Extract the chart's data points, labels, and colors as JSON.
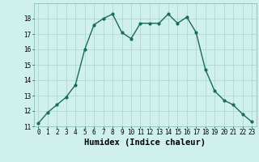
{
  "x": [
    0,
    1,
    2,
    3,
    4,
    5,
    6,
    7,
    8,
    9,
    10,
    11,
    12,
    13,
    14,
    15,
    16,
    17,
    18,
    19,
    20,
    21,
    22,
    23
  ],
  "y": [
    11.2,
    11.9,
    12.4,
    12.9,
    13.7,
    16.0,
    17.6,
    18.0,
    18.3,
    17.1,
    16.7,
    17.7,
    17.7,
    17.7,
    18.3,
    17.7,
    18.1,
    17.1,
    14.7,
    13.3,
    12.7,
    12.4,
    11.8,
    11.3
  ],
  "line_color": "#1a6b5a",
  "marker": "o",
  "markersize": 2.0,
  "linewidth": 1.0,
  "background_color": "#cff0ec",
  "grid_color": "#b0d8d2",
  "xlabel": "Humidex (Indice chaleur)",
  "xlim": [
    -0.5,
    23.5
  ],
  "ylim": [
    11,
    19
  ],
  "yticks": [
    11,
    12,
    13,
    14,
    15,
    16,
    17,
    18
  ],
  "xtick_labels": [
    "0",
    "1",
    "2",
    "3",
    "4",
    "5",
    "6",
    "7",
    "8",
    "9",
    "10",
    "11",
    "12",
    "13",
    "14",
    "15",
    "16",
    "17",
    "18",
    "19",
    "20",
    "21",
    "22",
    "23"
  ],
  "tick_fontsize": 5.5,
  "xlabel_fontsize": 7.5
}
